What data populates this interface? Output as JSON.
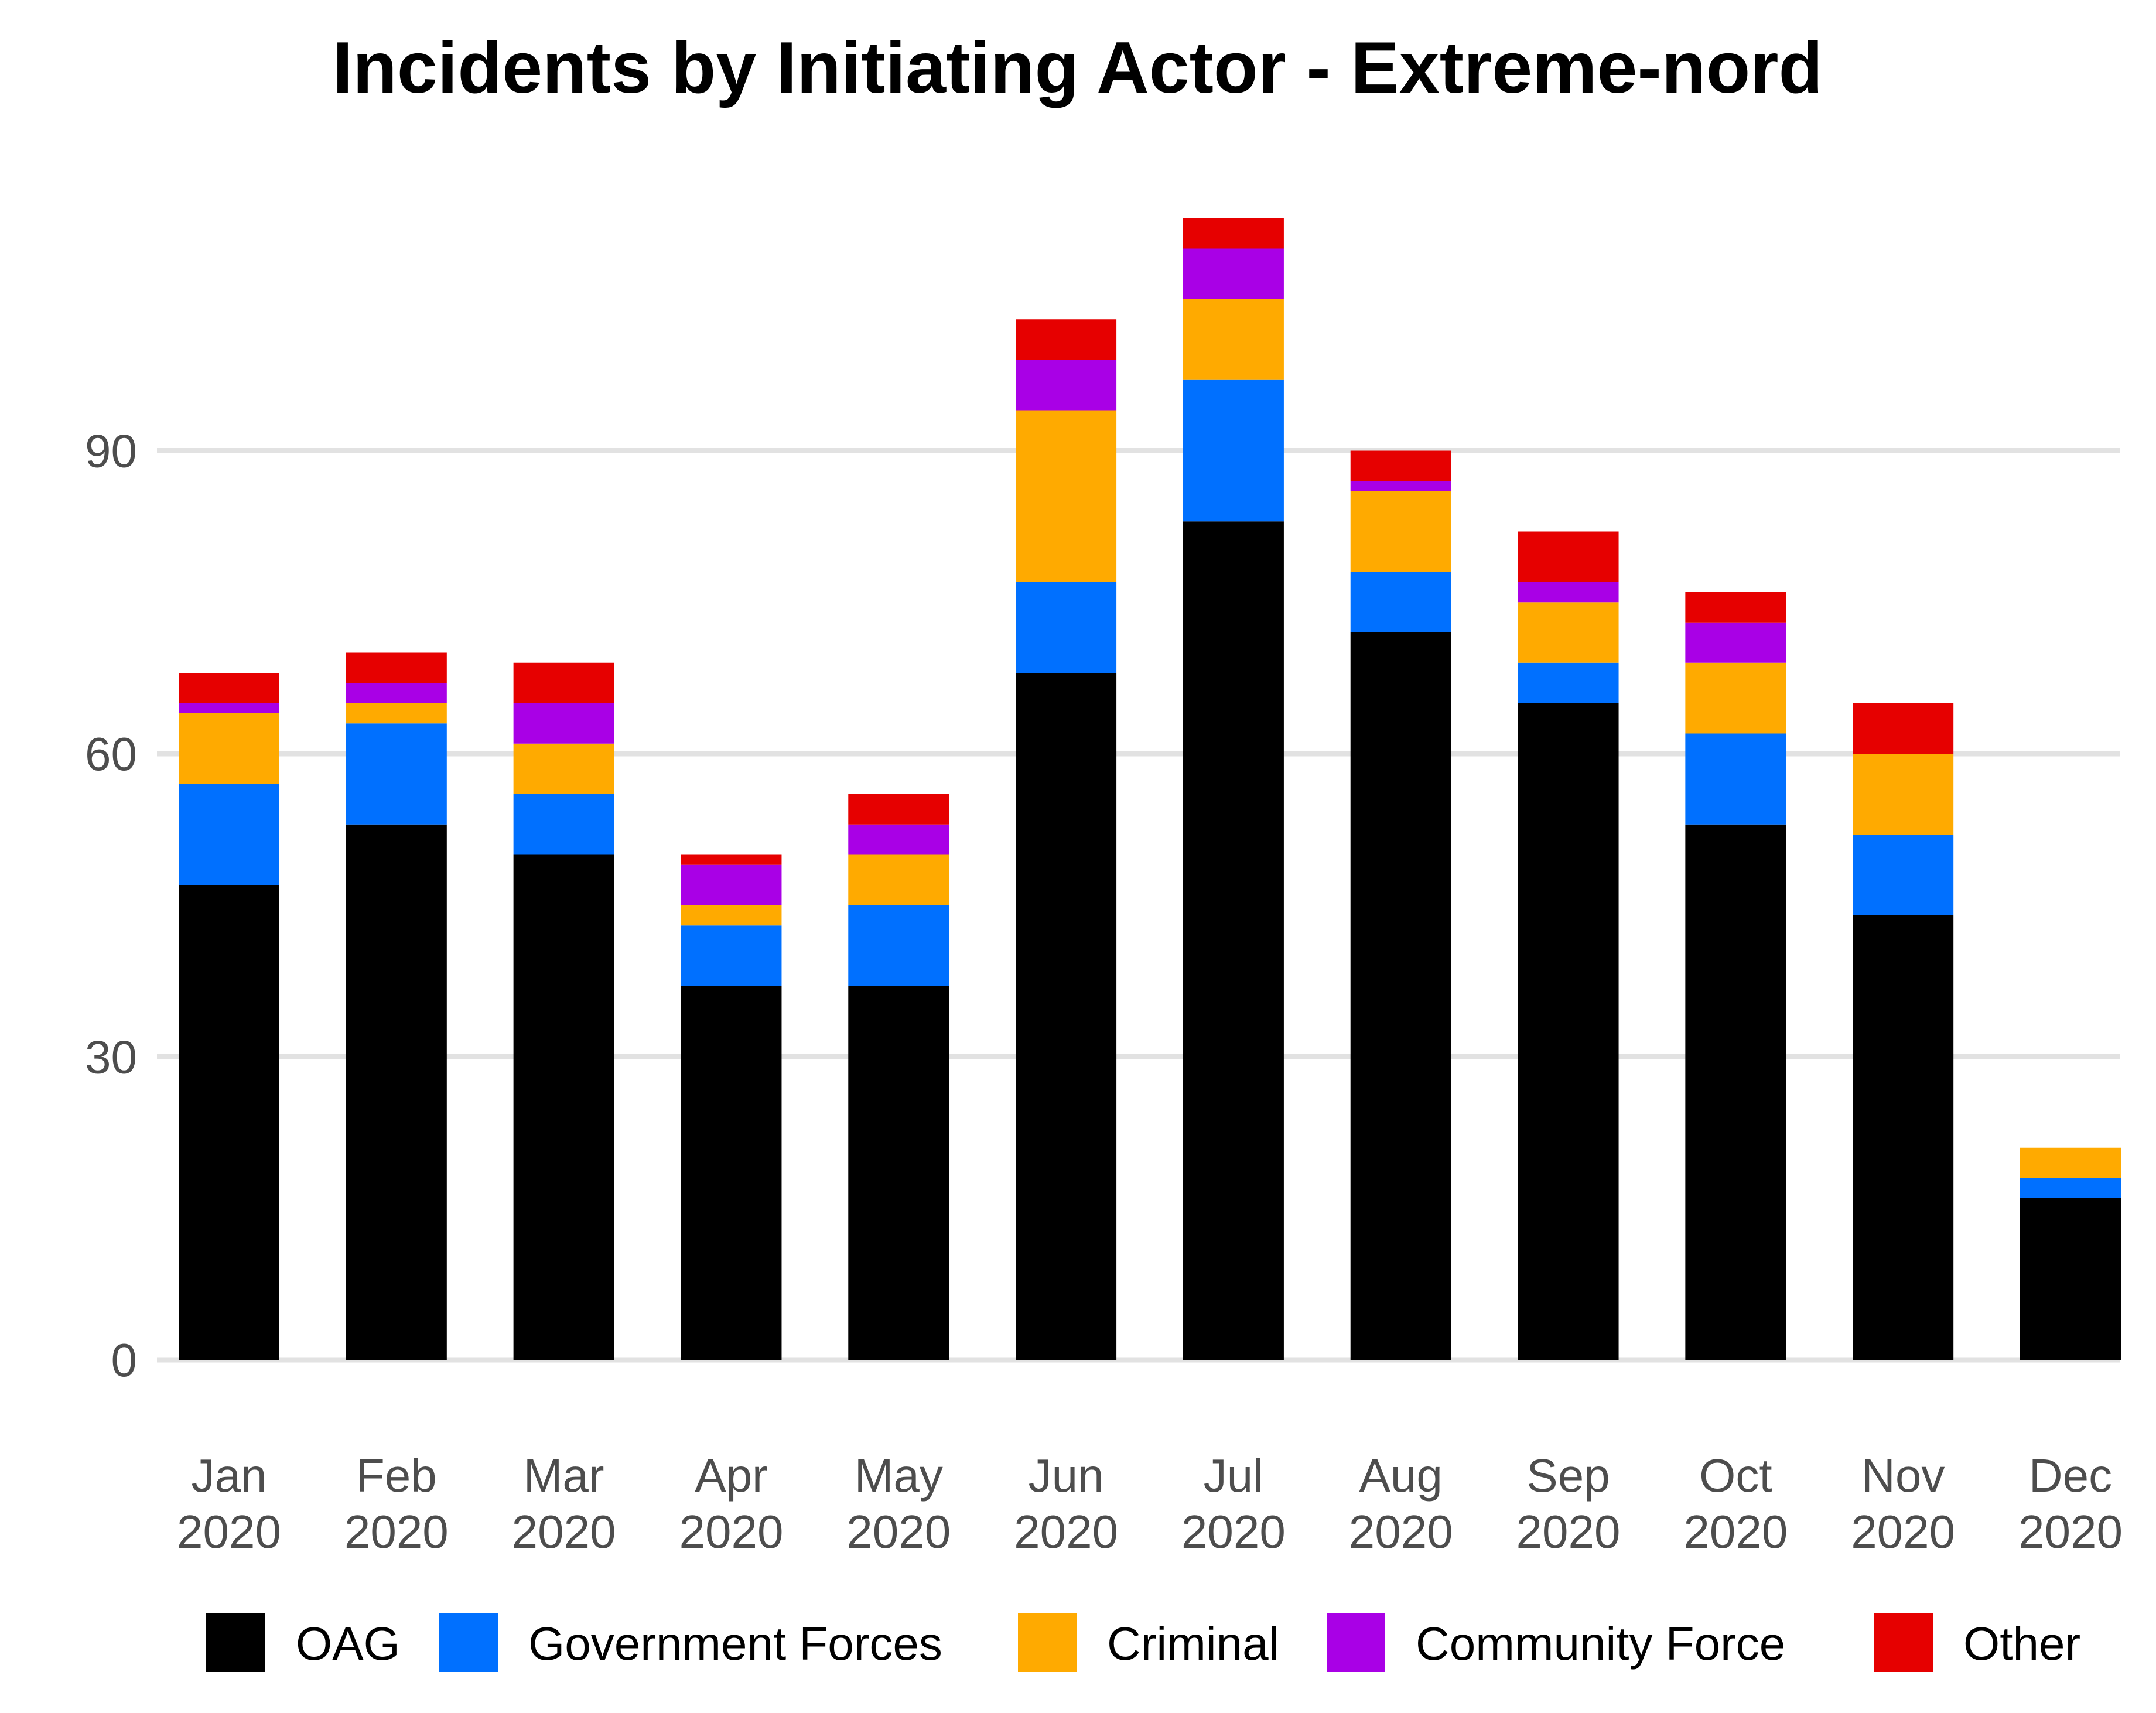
{
  "chart_data": {
    "type": "bar",
    "stacked": true,
    "title": "Incidents by Initiating Actor - Extreme-nord",
    "xlabel": "",
    "ylabel": "",
    "ylim": [
      0,
      113
    ],
    "yticks": [
      0,
      30,
      60,
      90
    ],
    "grid": "horizontal",
    "legend_position": "bottom",
    "categories": [
      [
        "Jan",
        "2020"
      ],
      [
        "Feb",
        "2020"
      ],
      [
        "Mar",
        "2020"
      ],
      [
        "Apr",
        "2020"
      ],
      [
        "May",
        "2020"
      ],
      [
        "Jun",
        "2020"
      ],
      [
        "Jul",
        "2020"
      ],
      [
        "Aug",
        "2020"
      ],
      [
        "Sep",
        "2020"
      ],
      [
        "Oct",
        "2020"
      ],
      [
        "Nov",
        "2020"
      ],
      [
        "Dec",
        "2020"
      ]
    ],
    "series": [
      {
        "name": "OAG",
        "color": "#000000",
        "values": [
          47,
          53,
          50,
          37,
          37,
          68,
          83,
          72,
          65,
          53,
          44,
          16
        ]
      },
      {
        "name": "Government Forces",
        "color": "#0070ff",
        "values": [
          10,
          10,
          6,
          6,
          8,
          9,
          14,
          6,
          4,
          9,
          8,
          2
        ]
      },
      {
        "name": "Criminal",
        "color": "#ffaa00",
        "values": [
          7,
          2,
          5,
          2,
          5,
          17,
          8,
          8,
          6,
          7,
          8,
          3
        ]
      },
      {
        "name": "Community Force",
        "color": "#a900e6",
        "values": [
          1,
          2,
          4,
          4,
          3,
          5,
          5,
          1,
          2,
          4,
          0,
          0
        ]
      },
      {
        "name": "Other",
        "color": "#e60000",
        "values": [
          3,
          3,
          4,
          1,
          3,
          4,
          3,
          3,
          5,
          3,
          5,
          0
        ]
      }
    ]
  }
}
